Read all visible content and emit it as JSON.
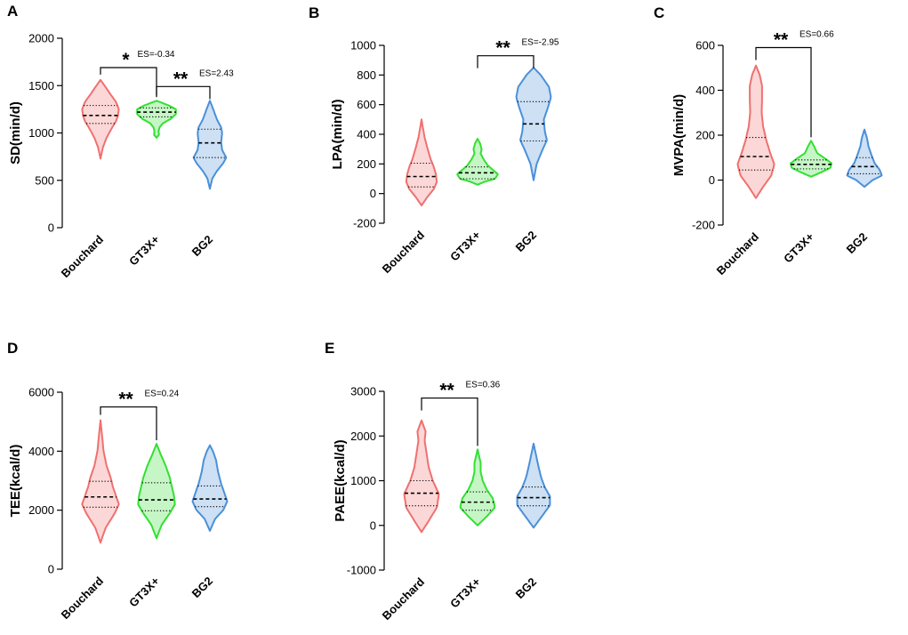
{
  "colors": {
    "Bouchard": "#f07070",
    "GT3X+": "#33e033",
    "BG2": "#4a90d9"
  },
  "chart_data": [
    {
      "panel": "A",
      "type": "violin",
      "ylabel": "SD(min/d)",
      "categories": [
        "Bouchard",
        "GT3X+",
        "BG2"
      ],
      "ylim": [
        0,
        2000
      ],
      "yticks": [
        0,
        500,
        1000,
        1500,
        2000
      ],
      "series": [
        {
          "name": "Bouchard",
          "min": 730,
          "max": 1560,
          "q1": 1100,
          "median": 1185,
          "q3": 1290,
          "profile": [
            [
              730,
              0
            ],
            [
              850,
              0.12
            ],
            [
              950,
              0.3
            ],
            [
              1050,
              0.55
            ],
            [
              1120,
              0.75
            ],
            [
              1180,
              0.85
            ],
            [
              1250,
              0.9
            ],
            [
              1330,
              0.75
            ],
            [
              1420,
              0.45
            ],
            [
              1500,
              0.2
            ],
            [
              1560,
              0
            ]
          ]
        },
        {
          "name": "GT3X+",
          "min": 950,
          "max": 1340,
          "q1": 1170,
          "median": 1220,
          "q3": 1265,
          "profile": [
            [
              950,
              0
            ],
            [
              980,
              0.12
            ],
            [
              1020,
              0.1
            ],
            [
              1060,
              0.15
            ],
            [
              1100,
              0.3
            ],
            [
              1150,
              0.7
            ],
            [
              1200,
              0.95
            ],
            [
              1250,
              0.95
            ],
            [
              1290,
              0.6
            ],
            [
              1320,
              0.25
            ],
            [
              1340,
              0
            ]
          ]
        },
        {
          "name": "BG2",
          "min": 410,
          "max": 1340,
          "q1": 740,
          "median": 895,
          "q3": 1040,
          "profile": [
            [
              410,
              0
            ],
            [
              520,
              0.12
            ],
            [
              600,
              0.35
            ],
            [
              680,
              0.65
            ],
            [
              740,
              0.8
            ],
            [
              820,
              0.6
            ],
            [
              900,
              0.55
            ],
            [
              1000,
              0.6
            ],
            [
              1060,
              0.55
            ],
            [
              1140,
              0.35
            ],
            [
              1240,
              0.18
            ],
            [
              1340,
              0
            ]
          ]
        }
      ],
      "brackets": [
        {
          "from": "Bouchard",
          "to": "GT3X+",
          "y": 1690,
          "stars": "*",
          "es": "ES=-0.34"
        },
        {
          "from": "GT3X+",
          "to": "BG2",
          "y": 1490,
          "stars": "**",
          "es": "ES=2.43"
        }
      ]
    },
    {
      "panel": "B",
      "type": "violin",
      "ylabel": "LPA(min/d)",
      "categories": [
        "Bouchard",
        "GT3X+",
        "BG2"
      ],
      "ylim": [
        -200,
        1000
      ],
      "yticks": [
        -200,
        0,
        200,
        400,
        600,
        800,
        1000
      ],
      "series": [
        {
          "name": "Bouchard",
          "min": -80,
          "max": 500,
          "q1": 45,
          "median": 115,
          "q3": 205,
          "profile": [
            [
              -80,
              0
            ],
            [
              -20,
              0.3
            ],
            [
              30,
              0.6
            ],
            [
              80,
              0.75
            ],
            [
              130,
              0.7
            ],
            [
              180,
              0.6
            ],
            [
              230,
              0.45
            ],
            [
              300,
              0.3
            ],
            [
              380,
              0.15
            ],
            [
              450,
              0.06
            ],
            [
              500,
              0
            ]
          ]
        },
        {
          "name": "GT3X+",
          "min": 60,
          "max": 370,
          "q1": 100,
          "median": 140,
          "q3": 180,
          "profile": [
            [
              60,
              0
            ],
            [
              80,
              0.35
            ],
            [
              100,
              0.85
            ],
            [
              130,
              1.0
            ],
            [
              160,
              0.75
            ],
            [
              190,
              0.5
            ],
            [
              230,
              0.3
            ],
            [
              270,
              0.15
            ],
            [
              300,
              0.2
            ],
            [
              340,
              0.12
            ],
            [
              370,
              0
            ]
          ]
        },
        {
          "name": "BG2",
          "min": 90,
          "max": 850,
          "q1": 355,
          "median": 470,
          "q3": 620,
          "profile": [
            [
              90,
              0
            ],
            [
              200,
              0.15
            ],
            [
              300,
              0.45
            ],
            [
              360,
              0.65
            ],
            [
              420,
              0.55
            ],
            [
              500,
              0.5
            ],
            [
              580,
              0.7
            ],
            [
              650,
              0.85
            ],
            [
              720,
              0.75
            ],
            [
              800,
              0.35
            ],
            [
              850,
              0
            ]
          ]
        }
      ],
      "brackets": [
        {
          "from": "GT3X+",
          "to": "BG2",
          "y": 930,
          "stars": "**",
          "es": "ES=-2.95"
        }
      ]
    },
    {
      "panel": "C",
      "type": "violin",
      "ylabel": "MVPA(min/d)",
      "categories": [
        "Bouchard",
        "GT3X+",
        "BG2"
      ],
      "ylim": [
        -200,
        600
      ],
      "yticks": [
        -200,
        0,
        200,
        400,
        600
      ],
      "series": [
        {
          "name": "Bouchard",
          "min": -80,
          "max": 510,
          "q1": 45,
          "median": 105,
          "q3": 190,
          "profile": [
            [
              -80,
              0
            ],
            [
              -30,
              0.35
            ],
            [
              20,
              0.75
            ],
            [
              70,
              0.9
            ],
            [
              120,
              0.7
            ],
            [
              180,
              0.5
            ],
            [
              240,
              0.35
            ],
            [
              300,
              0.28
            ],
            [
              360,
              0.3
            ],
            [
              420,
              0.3
            ],
            [
              470,
              0.18
            ],
            [
              510,
              0
            ]
          ]
        },
        {
          "name": "GT3X+",
          "min": 15,
          "max": 175,
          "q1": 50,
          "median": 70,
          "q3": 90,
          "profile": [
            [
              15,
              0
            ],
            [
              35,
              0.5
            ],
            [
              55,
              0.95
            ],
            [
              75,
              1.0
            ],
            [
              95,
              0.7
            ],
            [
              120,
              0.3
            ],
            [
              150,
              0.15
            ],
            [
              175,
              0
            ]
          ]
        },
        {
          "name": "BG2",
          "min": -30,
          "max": 225,
          "q1": 28,
          "median": 60,
          "q3": 100,
          "profile": [
            [
              -30,
              0
            ],
            [
              0,
              0.4
            ],
            [
              20,
              0.85
            ],
            [
              45,
              0.75
            ],
            [
              75,
              0.5
            ],
            [
              110,
              0.35
            ],
            [
              150,
              0.2
            ],
            [
              190,
              0.12
            ],
            [
              225,
              0
            ]
          ]
        }
      ],
      "brackets": [
        {
          "from": "Bouchard",
          "to": "GT3X+",
          "y": 590,
          "stars": "**",
          "es": "ES=0.66"
        }
      ]
    },
    {
      "panel": "D",
      "type": "violin",
      "ylabel": "TEE(kcal/d)",
      "categories": [
        "Bouchard",
        "GT3X+",
        "BG2"
      ],
      "ylim": [
        0,
        6000
      ],
      "yticks": [
        0,
        2000,
        4000,
        6000
      ],
      "series": [
        {
          "name": "Bouchard",
          "min": 900,
          "max": 5050,
          "q1": 2100,
          "median": 2450,
          "q3": 2980,
          "profile": [
            [
              900,
              0
            ],
            [
              1400,
              0.25
            ],
            [
              1900,
              0.7
            ],
            [
              2200,
              0.9
            ],
            [
              2500,
              0.75
            ],
            [
              2800,
              0.6
            ],
            [
              3100,
              0.5
            ],
            [
              3500,
              0.3
            ],
            [
              4000,
              0.15
            ],
            [
              4500,
              0.08
            ],
            [
              5050,
              0
            ]
          ]
        },
        {
          "name": "GT3X+",
          "min": 1050,
          "max": 4250,
          "q1": 1980,
          "median": 2350,
          "q3": 2930,
          "profile": [
            [
              1050,
              0
            ],
            [
              1500,
              0.25
            ],
            [
              1900,
              0.65
            ],
            [
              2200,
              0.9
            ],
            [
              2500,
              0.85
            ],
            [
              2800,
              0.75
            ],
            [
              3100,
              0.65
            ],
            [
              3500,
              0.45
            ],
            [
              3900,
              0.2
            ],
            [
              4250,
              0
            ]
          ]
        },
        {
          "name": "BG2",
          "min": 1300,
          "max": 4200,
          "q1": 2120,
          "median": 2380,
          "q3": 2820,
          "profile": [
            [
              1300,
              0
            ],
            [
              1700,
              0.25
            ],
            [
              2000,
              0.65
            ],
            [
              2300,
              0.85
            ],
            [
              2600,
              0.7
            ],
            [
              2900,
              0.55
            ],
            [
              3300,
              0.4
            ],
            [
              3700,
              0.3
            ],
            [
              4000,
              0.15
            ],
            [
              4200,
              0
            ]
          ]
        }
      ],
      "brackets": [
        {
          "from": "Bouchard",
          "to": "GT3X+",
          "y": 5500,
          "stars": "**",
          "es": "ES=0.24"
        }
      ]
    },
    {
      "panel": "E",
      "type": "violin",
      "ylabel": "PAEE(kcal/d)",
      "categories": [
        "Bouchard",
        "GT3X+",
        "BG2"
      ],
      "ylim": [
        -1000,
        3000
      ],
      "yticks": [
        -1000,
        0,
        1000,
        2000,
        3000
      ],
      "series": [
        {
          "name": "Bouchard",
          "min": -150,
          "max": 2350,
          "q1": 440,
          "median": 720,
          "q3": 1000,
          "profile": [
            [
              -150,
              0
            ],
            [
              100,
              0.35
            ],
            [
              400,
              0.75
            ],
            [
              700,
              0.85
            ],
            [
              1000,
              0.55
            ],
            [
              1300,
              0.35
            ],
            [
              1600,
              0.25
            ],
            [
              1900,
              0.15
            ],
            [
              2100,
              0.2
            ],
            [
              2350,
              0
            ]
          ]
        },
        {
          "name": "GT3X+",
          "min": 0,
          "max": 1700,
          "q1": 340,
          "median": 520,
          "q3": 750,
          "profile": [
            [
              0,
              0
            ],
            [
              200,
              0.45
            ],
            [
              400,
              0.85
            ],
            [
              600,
              0.75
            ],
            [
              800,
              0.45
            ],
            [
              1000,
              0.25
            ],
            [
              1200,
              0.15
            ],
            [
              1400,
              0.15
            ],
            [
              1700,
              0
            ]
          ]
        },
        {
          "name": "BG2",
          "min": -50,
          "max": 1830,
          "q1": 440,
          "median": 620,
          "q3": 860,
          "profile": [
            [
              -50,
              0
            ],
            [
              200,
              0.4
            ],
            [
              450,
              0.8
            ],
            [
              650,
              0.8
            ],
            [
              850,
              0.55
            ],
            [
              1100,
              0.35
            ],
            [
              1400,
              0.2
            ],
            [
              1830,
              0
            ]
          ]
        }
      ],
      "brackets": [
        {
          "from": "Bouchard",
          "to": "GT3X+",
          "y": 2850,
          "stars": "**",
          "es": "ES=0.36"
        }
      ]
    }
  ]
}
